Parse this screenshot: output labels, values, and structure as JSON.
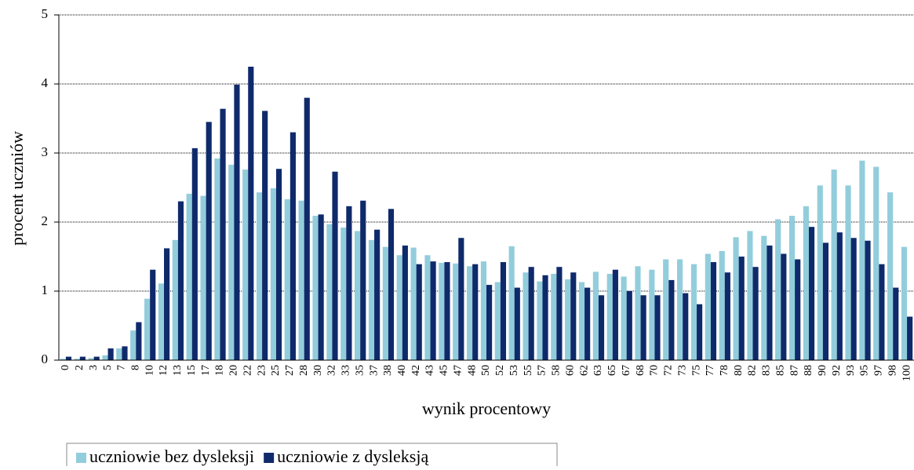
{
  "chart_data": {
    "type": "bar",
    "x_label": "wynik procentowy",
    "y_label": "procent uczniów",
    "categories": [
      "0",
      "2",
      "3",
      "5",
      "7",
      "8",
      "10",
      "12",
      "13",
      "15",
      "17",
      "18",
      "20",
      "22",
      "23",
      "25",
      "27",
      "28",
      "30",
      "32",
      "33",
      "35",
      "37",
      "38",
      "40",
      "42",
      "43",
      "45",
      "47",
      "48",
      "50",
      "52",
      "53",
      "55",
      "57",
      "58",
      "60",
      "62",
      "63",
      "65",
      "67",
      "68",
      "70",
      "72",
      "73",
      "75",
      "77",
      "78",
      "80",
      "82",
      "83",
      "85",
      "87",
      "88",
      "90",
      "92",
      "93",
      "95",
      "97",
      "98",
      "100"
    ],
    "series": [
      {
        "name": "uczniowie bez dysleksji",
        "color": "#92cddc",
        "values": [
          0.02,
          0.02,
          0.03,
          0.07,
          0.17,
          0.43,
          0.89,
          1.11,
          1.74,
          2.41,
          2.38,
          2.92,
          2.83,
          2.76,
          2.43,
          2.49,
          2.33,
          2.31,
          2.09,
          1.97,
          1.92,
          1.87,
          1.74,
          1.64,
          1.52,
          1.63,
          1.52,
          1.41,
          1.4,
          1.36,
          1.43,
          1.13,
          1.65,
          1.27,
          1.14,
          1.25,
          1.17,
          1.13,
          1.28,
          1.25,
          1.21,
          1.36,
          1.31,
          1.46,
          1.46,
          1.39,
          1.54,
          1.58,
          1.78,
          1.87,
          1.8,
          2.04,
          2.09,
          2.23,
          2.53,
          2.76,
          2.53,
          2.89,
          2.8,
          2.43,
          1.64
        ]
      },
      {
        "name": "uczniowie z dysleksją",
        "color": "#0f2a6b",
        "values": [
          0.05,
          0.05,
          0.05,
          0.17,
          0.2,
          0.55,
          1.31,
          1.62,
          2.3,
          3.07,
          3.45,
          3.64,
          3.99,
          4.25,
          3.61,
          2.77,
          3.3,
          3.8,
          2.11,
          2.73,
          2.23,
          2.31,
          1.89,
          2.19,
          1.66,
          1.39,
          1.43,
          1.42,
          1.77,
          1.39,
          1.09,
          1.42,
          1.05,
          1.35,
          1.23,
          1.35,
          1.27,
          1.05,
          0.94,
          1.31,
          1.0,
          0.94,
          0.94,
          1.16,
          0.97,
          0.81,
          1.42,
          1.27,
          1.5,
          1.35,
          1.66,
          1.54,
          1.46,
          1.93,
          1.7,
          1.85,
          1.77,
          1.73,
          1.39,
          1.05,
          0.63
        ]
      }
    ],
    "ylim": [
      0,
      5
    ],
    "yticks": [
      0,
      1,
      2,
      3,
      4,
      5
    ],
    "grid": true,
    "legend_position": "bottom-left"
  }
}
